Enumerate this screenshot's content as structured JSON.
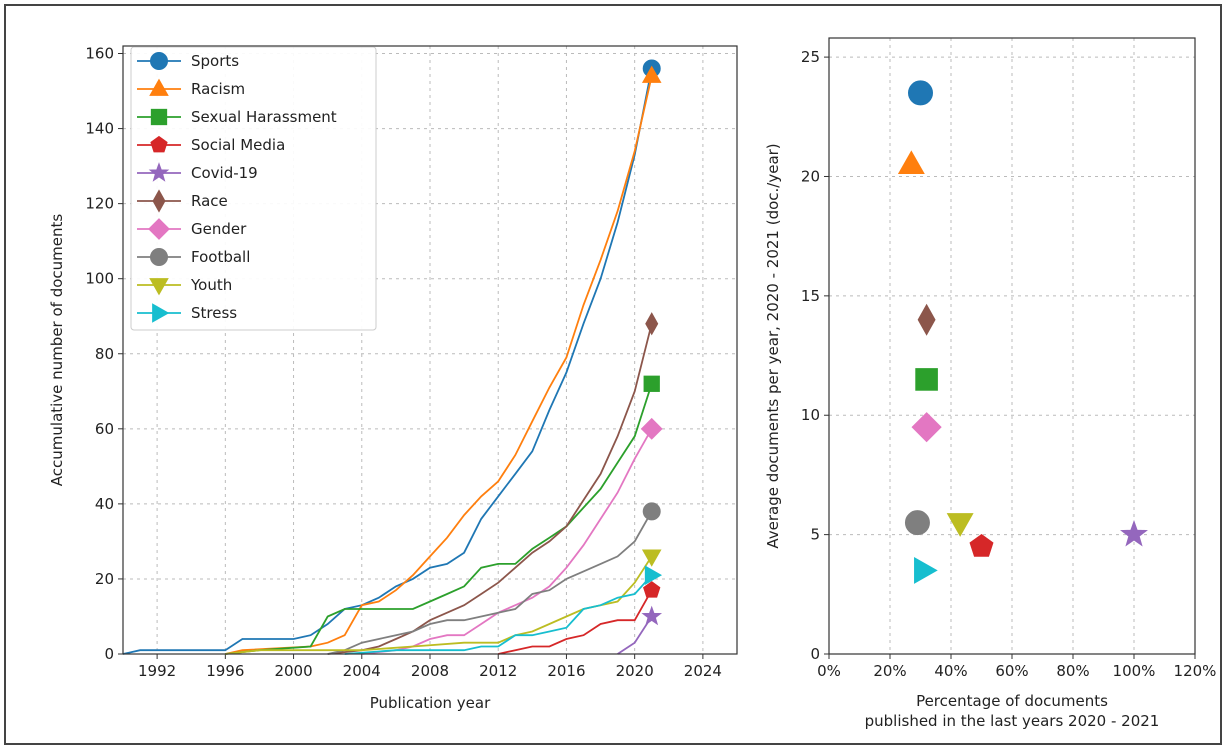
{
  "chart_data": [
    {
      "type": "line",
      "xlabel": "Publication year",
      "ylabel": "Accumulative number of documents",
      "xlim": [
        1990,
        2026
      ],
      "ylim": [
        0,
        162
      ],
      "xticks": [
        1992,
        1996,
        2000,
        2004,
        2008,
        2012,
        2016,
        2020,
        2024
      ],
      "yticks": [
        0,
        20,
        40,
        60,
        80,
        100,
        120,
        140,
        160
      ],
      "grid": true,
      "legend_position": "top-left",
      "series": [
        {
          "name": "Sports",
          "color": "#1f77b4",
          "marker": "circle",
          "points": [
            [
              1990,
              0
            ],
            [
              1991,
              1
            ],
            [
              1995,
              1
            ],
            [
              1996,
              1
            ],
            [
              1997,
              4
            ],
            [
              2000,
              4
            ],
            [
              2001,
              5
            ],
            [
              2002,
              8
            ],
            [
              2003,
              12
            ],
            [
              2004,
              13
            ],
            [
              2005,
              15
            ],
            [
              2006,
              18
            ],
            [
              2007,
              20
            ],
            [
              2008,
              23
            ],
            [
              2009,
              24
            ],
            [
              2010,
              27
            ],
            [
              2011,
              36
            ],
            [
              2012,
              42
            ],
            [
              2013,
              48
            ],
            [
              2014,
              54
            ],
            [
              2015,
              65
            ],
            [
              2016,
              75
            ],
            [
              2017,
              88
            ],
            [
              2018,
              100
            ],
            [
              2019,
              115
            ],
            [
              2020,
              133
            ],
            [
              2021,
              156
            ]
          ]
        },
        {
          "name": "Racism",
          "color": "#ff7f0e",
          "marker": "triangle-up",
          "points": [
            [
              1996,
              0
            ],
            [
              1997,
              1
            ],
            [
              2001,
              2
            ],
            [
              2002,
              3
            ],
            [
              2003,
              5
            ],
            [
              2004,
              13
            ],
            [
              2005,
              14
            ],
            [
              2006,
              17
            ],
            [
              2007,
              21
            ],
            [
              2008,
              26
            ],
            [
              2009,
              31
            ],
            [
              2010,
              37
            ],
            [
              2011,
              42
            ],
            [
              2012,
              46
            ],
            [
              2013,
              53
            ],
            [
              2014,
              62
            ],
            [
              2015,
              71
            ],
            [
              2016,
              79
            ],
            [
              2017,
              93
            ],
            [
              2018,
              105
            ],
            [
              2019,
              118
            ],
            [
              2020,
              134
            ],
            [
              2021,
              154
            ]
          ]
        },
        {
          "name": "Sexual Harassment",
          "color": "#2ca02c",
          "marker": "square",
          "points": [
            [
              1996,
              0
            ],
            [
              1998,
              1
            ],
            [
              2001,
              2
            ],
            [
              2002,
              10
            ],
            [
              2003,
              12
            ],
            [
              2004,
              12
            ],
            [
              2007,
              12
            ],
            [
              2008,
              14
            ],
            [
              2009,
              16
            ],
            [
              2010,
              18
            ],
            [
              2011,
              23
            ],
            [
              2012,
              24
            ],
            [
              2013,
              24
            ],
            [
              2014,
              28
            ],
            [
              2015,
              31
            ],
            [
              2016,
              34
            ],
            [
              2017,
              39
            ],
            [
              2018,
              44
            ],
            [
              2019,
              51
            ],
            [
              2020,
              58
            ],
            [
              2021,
              72
            ]
          ]
        },
        {
          "name": "Social Media",
          "color": "#d62728",
          "marker": "pentagon",
          "points": [
            [
              2012,
              0
            ],
            [
              2013,
              1
            ],
            [
              2014,
              2
            ],
            [
              2015,
              2
            ],
            [
              2016,
              4
            ],
            [
              2017,
              5
            ],
            [
              2018,
              8
            ],
            [
              2019,
              9
            ],
            [
              2020,
              9
            ],
            [
              2021,
              17
            ]
          ]
        },
        {
          "name": "Covid-19",
          "color": "#9467bd",
          "marker": "star",
          "points": [
            [
              2019,
              0
            ],
            [
              2020,
              3
            ],
            [
              2021,
              10
            ]
          ]
        },
        {
          "name": "Race",
          "color": "#8c564b",
          "marker": "diamond-thin",
          "points": [
            [
              2002,
              0
            ],
            [
              2004,
              1
            ],
            [
              2005,
              2
            ],
            [
              2006,
              4
            ],
            [
              2007,
              6
            ],
            [
              2008,
              9
            ],
            [
              2009,
              11
            ],
            [
              2010,
              13
            ],
            [
              2011,
              16
            ],
            [
              2012,
              19
            ],
            [
              2013,
              23
            ],
            [
              2014,
              27
            ],
            [
              2015,
              30
            ],
            [
              2016,
              34
            ],
            [
              2017,
              41
            ],
            [
              2018,
              48
            ],
            [
              2019,
              58
            ],
            [
              2020,
              70
            ],
            [
              2021,
              88
            ]
          ]
        },
        {
          "name": "Gender",
          "color": "#e377c2",
          "marker": "diamond",
          "points": [
            [
              2004,
              0
            ],
            [
              2006,
              1
            ],
            [
              2007,
              2
            ],
            [
              2008,
              4
            ],
            [
              2009,
              5
            ],
            [
              2010,
              5
            ],
            [
              2011,
              8
            ],
            [
              2012,
              11
            ],
            [
              2013,
              13
            ],
            [
              2014,
              15
            ],
            [
              2015,
              18
            ],
            [
              2016,
              23
            ],
            [
              2017,
              29
            ],
            [
              2018,
              36
            ],
            [
              2019,
              43
            ],
            [
              2020,
              52
            ],
            [
              2021,
              60
            ]
          ]
        },
        {
          "name": "Football",
          "color": "#7f7f7f",
          "marker": "circle",
          "points": [
            [
              2002,
              0
            ],
            [
              2003,
              1
            ],
            [
              2004,
              3
            ],
            [
              2005,
              4
            ],
            [
              2006,
              5
            ],
            [
              2007,
              6
            ],
            [
              2008,
              8
            ],
            [
              2009,
              9
            ],
            [
              2010,
              9
            ],
            [
              2011,
              10
            ],
            [
              2012,
              11
            ],
            [
              2013,
              12
            ],
            [
              2014,
              16
            ],
            [
              2015,
              17
            ],
            [
              2016,
              20
            ],
            [
              2017,
              22
            ],
            [
              2018,
              24
            ],
            [
              2019,
              26
            ],
            [
              2020,
              30
            ],
            [
              2021,
              38
            ]
          ]
        },
        {
          "name": "Youth",
          "color": "#bcbd22",
          "marker": "triangle-down",
          "points": [
            [
              1996,
              0
            ],
            [
              1998,
              1
            ],
            [
              2002,
              1
            ],
            [
              2004,
              1
            ],
            [
              2007,
              2
            ],
            [
              2010,
              3
            ],
            [
              2011,
              3
            ],
            [
              2012,
              3
            ],
            [
              2013,
              5
            ],
            [
              2014,
              6
            ],
            [
              2015,
              8
            ],
            [
              2016,
              10
            ],
            [
              2017,
              12
            ],
            [
              2018,
              13
            ],
            [
              2019,
              14
            ],
            [
              2020,
              19
            ],
            [
              2021,
              26
            ]
          ]
        },
        {
          "name": "Stress",
          "color": "#17becf",
          "marker": "triangle-right",
          "points": [
            [
              2003,
              0
            ],
            [
              2006,
              1
            ],
            [
              2010,
              1
            ],
            [
              2011,
              2
            ],
            [
              2012,
              2
            ],
            [
              2013,
              5
            ],
            [
              2014,
              5
            ],
            [
              2015,
              6
            ],
            [
              2016,
              7
            ],
            [
              2017,
              12
            ],
            [
              2018,
              13
            ],
            [
              2019,
              15
            ],
            [
              2020,
              16
            ],
            [
              2021,
              21
            ]
          ]
        }
      ]
    },
    {
      "type": "scatter",
      "xlabel": "Percentage of documents",
      "xlabel2": "published in the last years 2020 - 2021",
      "ylabel": "Average documents per year, 2020 - 2021 (doc./year)",
      "xlim": [
        0,
        1.2
      ],
      "ylim": [
        0,
        25.8
      ],
      "xticks": [
        0,
        0.2,
        0.4,
        0.6,
        0.8,
        1.0,
        1.2
      ],
      "xtick_labels": [
        "0%",
        "20%",
        "40%",
        "60%",
        "80%",
        "100%",
        "120%"
      ],
      "yticks": [
        0,
        5,
        10,
        15,
        20,
        25
      ],
      "grid": true,
      "points": [
        {
          "name": "Sports",
          "x": 0.3,
          "y": 23.5,
          "color": "#1f77b4",
          "marker": "circle"
        },
        {
          "name": "Racism",
          "x": 0.27,
          "y": 20.5,
          "color": "#ff7f0e",
          "marker": "triangle-up"
        },
        {
          "name": "Race",
          "x": 0.32,
          "y": 14.0,
          "color": "#8c564b",
          "marker": "diamond-thin"
        },
        {
          "name": "Sexual Harassment",
          "x": 0.32,
          "y": 11.5,
          "color": "#2ca02c",
          "marker": "square"
        },
        {
          "name": "Gender",
          "x": 0.32,
          "y": 9.5,
          "color": "#e377c2",
          "marker": "diamond"
        },
        {
          "name": "Football",
          "x": 0.29,
          "y": 5.5,
          "color": "#7f7f7f",
          "marker": "circle"
        },
        {
          "name": "Youth",
          "x": 0.43,
          "y": 5.5,
          "color": "#bcbd22",
          "marker": "triangle-down"
        },
        {
          "name": "Social Media",
          "x": 0.5,
          "y": 4.5,
          "color": "#d62728",
          "marker": "pentagon"
        },
        {
          "name": "Covid-19",
          "x": 1.0,
          "y": 5.0,
          "color": "#9467bd",
          "marker": "star"
        },
        {
          "name": "Stress",
          "x": 0.31,
          "y": 3.5,
          "color": "#17becf",
          "marker": "triangle-right"
        }
      ]
    }
  ]
}
